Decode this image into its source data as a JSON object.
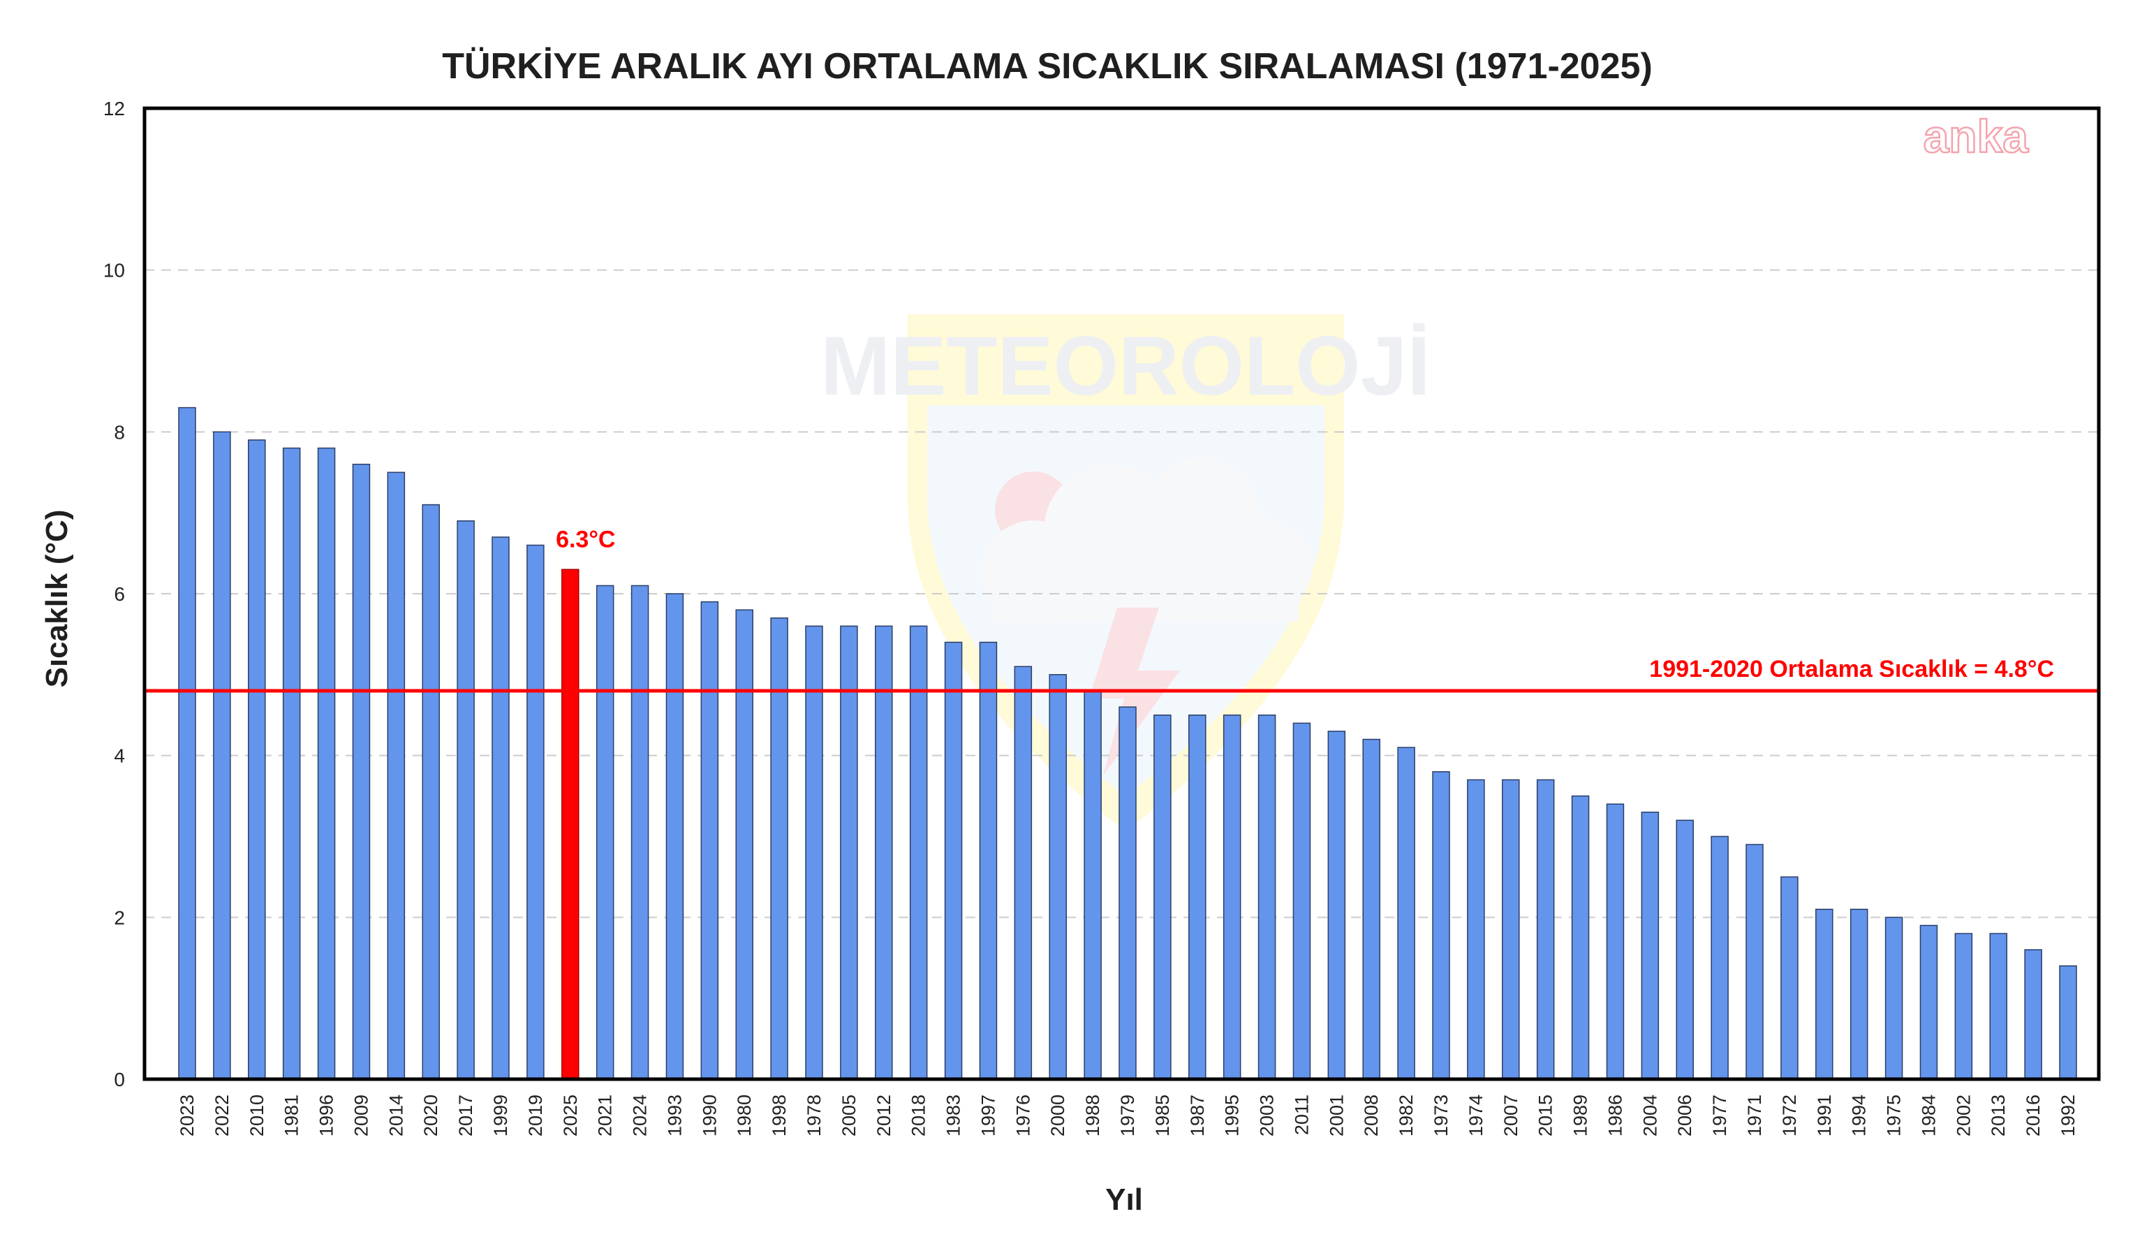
{
  "brand": {
    "logo_text": "anka"
  },
  "watermark": {
    "text": "METEOROLOJİ"
  },
  "colors": {
    "bar": "#6495ed",
    "bar_edge": "#2b3e66",
    "highlight": "#ff0000",
    "reference_line": "#ff0000",
    "grid": "#cccccc"
  },
  "chart_data": {
    "type": "bar",
    "title": "TÜRKİYE ARALIK AYI ORTALAMA SICAKLIK SIRALAMASI (1971-2025)",
    "xlabel": "Yıl",
    "ylabel": "Sıcaklık (°C)",
    "ylim": [
      0,
      12
    ],
    "yticks": [
      0,
      2,
      4,
      6,
      8,
      10,
      12
    ],
    "grid": "horizontal-dashed",
    "categories": [
      "2023",
      "2022",
      "2010",
      "1981",
      "1996",
      "2009",
      "2014",
      "2020",
      "2017",
      "1999",
      "2019",
      "2025",
      "2021",
      "2024",
      "1993",
      "1990",
      "1980",
      "1998",
      "1978",
      "2005",
      "2012",
      "2018",
      "1983",
      "1997",
      "1976",
      "2000",
      "1988",
      "1979",
      "1985",
      "1987",
      "1995",
      "2003",
      "2011",
      "2001",
      "2008",
      "1982",
      "1973",
      "1974",
      "2007",
      "2015",
      "1989",
      "1986",
      "2004",
      "2006",
      "1977",
      "1971",
      "1972",
      "1991",
      "1994",
      "1975",
      "1984",
      "2002",
      "2013",
      "2016",
      "1992"
    ],
    "values": [
      8.3,
      8.0,
      7.9,
      7.8,
      7.8,
      7.6,
      7.5,
      7.1,
      6.9,
      6.7,
      6.6,
      6.3,
      6.1,
      6.1,
      6.0,
      5.9,
      5.8,
      5.7,
      5.6,
      5.6,
      5.6,
      5.6,
      5.4,
      5.4,
      5.1,
      5.0,
      4.8,
      4.6,
      4.5,
      4.5,
      4.5,
      4.5,
      4.4,
      4.3,
      4.2,
      4.1,
      3.8,
      3.7,
      3.7,
      3.7,
      3.5,
      3.4,
      3.3,
      3.2,
      3.0,
      2.9,
      2.5,
      2.1,
      2.1,
      2.0,
      1.9,
      1.8,
      1.8,
      1.6,
      1.4
    ],
    "highlight": {
      "category": "2025",
      "value": 6.3,
      "label": "6.3°C"
    },
    "reference_line": {
      "value": 4.8,
      "label": "1991-2020 Ortalama Sıcaklık = 4.8°C"
    }
  }
}
